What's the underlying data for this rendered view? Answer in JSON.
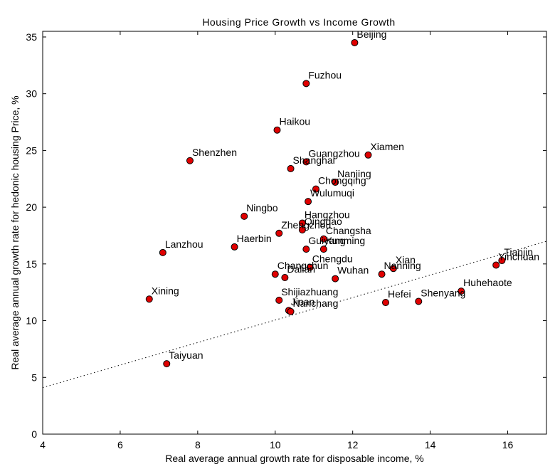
{
  "chart_data": {
    "type": "scatter",
    "title": "Housing Price Growth vs Income Growth",
    "xlabel": "Real average annual growth rate for disposable income, %",
    "ylabel": "Real average annual growth rate for hedonic housing Price, %",
    "xlim": [
      4,
      17
    ],
    "ylim": [
      0,
      35.5
    ],
    "xticks": [
      4,
      6,
      8,
      10,
      12,
      14,
      16
    ],
    "yticks": [
      0,
      5,
      10,
      15,
      20,
      25,
      30,
      35
    ],
    "grid": false,
    "marker_color": "#e00000",
    "trendline": {
      "style": "dotted",
      "x": [
        4,
        17
      ],
      "y": [
        4.1,
        17.0
      ]
    },
    "points": [
      {
        "label": "Beijing",
        "x": 12.05,
        "y": 34.5
      },
      {
        "label": "Fuzhou",
        "x": 10.8,
        "y": 30.9
      },
      {
        "label": "Haikou",
        "x": 10.05,
        "y": 26.8
      },
      {
        "label": "Xiamen",
        "x": 12.4,
        "y": 24.6
      },
      {
        "label": "Guangzhou",
        "x": 10.8,
        "y": 24.0
      },
      {
        "label": "Shenzhen",
        "x": 7.8,
        "y": 24.1
      },
      {
        "label": "Shanghai",
        "x": 10.4,
        "y": 23.4
      },
      {
        "label": "Nanjing",
        "x": 11.55,
        "y": 22.2
      },
      {
        "label": "Chongqing",
        "x": 11.05,
        "y": 21.6
      },
      {
        "label": "Wulumuqi",
        "x": 10.85,
        "y": 20.5
      },
      {
        "label": "Ningbo",
        "x": 9.2,
        "y": 19.2
      },
      {
        "label": "Hangzhou",
        "x": 10.7,
        "y": 18.6
      },
      {
        "label": "Qingdao",
        "x": 10.7,
        "y": 18.0
      },
      {
        "label": "Zhengzhou",
        "x": 10.1,
        "y": 17.7
      },
      {
        "label": "Changsha",
        "x": 11.25,
        "y": 17.2
      },
      {
        "label": "Haerbin",
        "x": 8.95,
        "y": 16.5
      },
      {
        "label": "Guiyang",
        "x": 10.8,
        "y": 16.3
      },
      {
        "label": "Kunming",
        "x": 11.25,
        "y": 16.3
      },
      {
        "label": "Lanzhou",
        "x": 7.1,
        "y": 16.0
      },
      {
        "label": "Tianjin",
        "x": 15.85,
        "y": 15.3
      },
      {
        "label": "Yinchuan",
        "x": 15.7,
        "y": 14.9
      },
      {
        "label": "Chengdu",
        "x": 10.9,
        "y": 14.7
      },
      {
        "label": "Xian",
        "x": 13.05,
        "y": 14.6
      },
      {
        "label": "Changchun",
        "x": 10.0,
        "y": 14.1
      },
      {
        "label": "Nanning",
        "x": 12.75,
        "y": 14.1
      },
      {
        "label": "Dalian",
        "x": 10.25,
        "y": 13.8
      },
      {
        "label": "Wuhan",
        "x": 11.55,
        "y": 13.7
      },
      {
        "label": "Huhehaote",
        "x": 14.8,
        "y": 12.6
      },
      {
        "label": "Xining",
        "x": 6.75,
        "y": 11.9
      },
      {
        "label": "Shijiazhuang",
        "x": 10.1,
        "y": 11.8
      },
      {
        "label": "Hefei",
        "x": 12.85,
        "y": 11.6
      },
      {
        "label": "Shenyang",
        "x": 13.7,
        "y": 11.7
      },
      {
        "label": "Jinan",
        "x": 10.35,
        "y": 10.9
      },
      {
        "label": "Nanchang",
        "x": 10.4,
        "y": 10.8
      },
      {
        "label": "Taiyuan",
        "x": 7.2,
        "y": 6.2
      }
    ]
  }
}
